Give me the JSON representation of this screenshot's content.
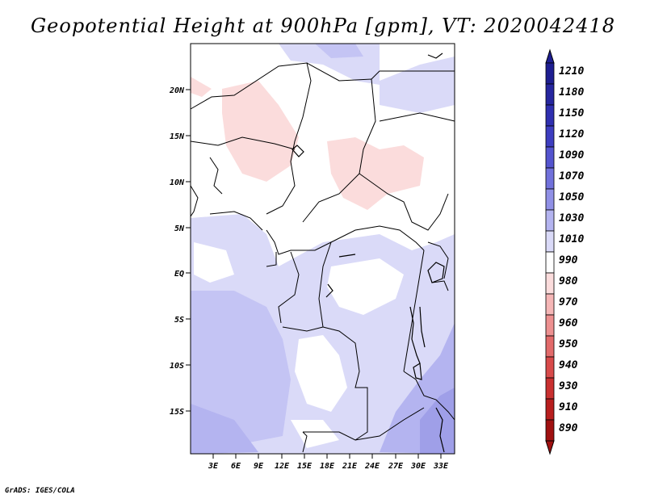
{
  "title": "Geopotential Height at 900hPa [gpm], VT: 2020042418",
  "credit": "GrADS: IGES/COLA",
  "map": {
    "lat_labels": [
      "20N",
      "15N",
      "10N",
      "5N",
      "EQ",
      "5S",
      "10S",
      "15S"
    ],
    "lon_labels": [
      "3E",
      "6E",
      "9E",
      "12E",
      "15E",
      "18E",
      "21E",
      "24E",
      "27E",
      "30E",
      "33E"
    ]
  },
  "colorbar": {
    "levels": [
      "1210",
      "1180",
      "1150",
      "1120",
      "1090",
      "1070",
      "1050",
      "1030",
      "1010",
      "990",
      "980",
      "970",
      "960",
      "950",
      "940",
      "930",
      "910",
      "890"
    ],
    "colors": [
      "#1e1e91",
      "#26269f",
      "#2f2fb0",
      "#3d3dc0",
      "#5454cf",
      "#7171db",
      "#9090e6",
      "#b4b4f0",
      "#dadaf8",
      "#ffffff",
      "#fbdcdc",
      "#f5b6b6",
      "#ed9090",
      "#e26a6a",
      "#d84a4a",
      "#c93030",
      "#b81e1e",
      "#a01010"
    ]
  }
}
